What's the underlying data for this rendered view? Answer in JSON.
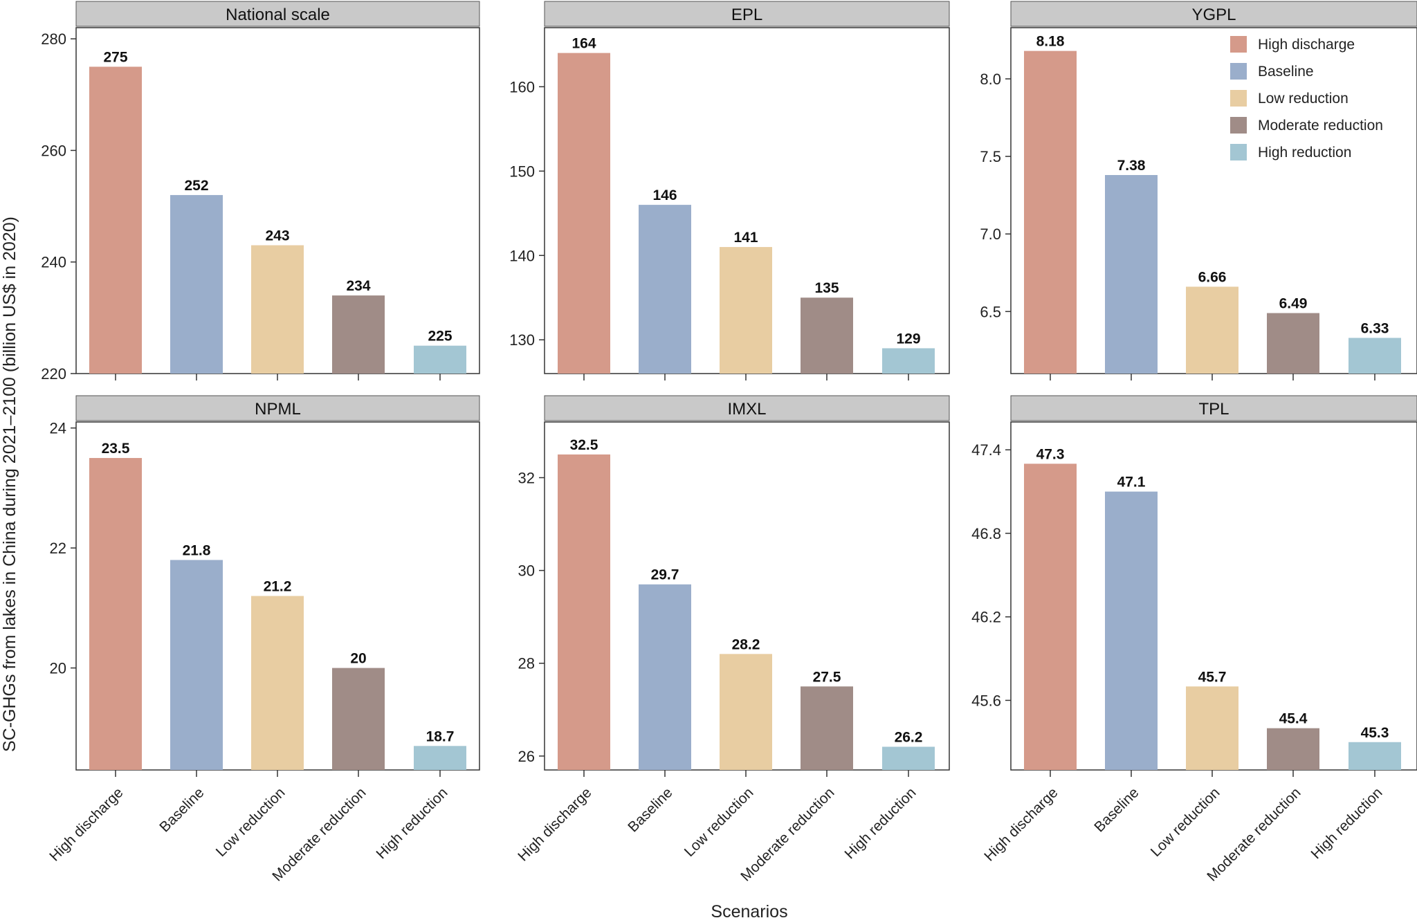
{
  "figure": {
    "ylabel": "SC-GHGs from lakes in China during 2021–2100 (billion US$ in 2020)",
    "xlabel": "Scenarios"
  },
  "legend": {
    "items": [
      {
        "label": "High discharge",
        "color": "#d59a8a"
      },
      {
        "label": "Baseline",
        "color": "#9aaecb"
      },
      {
        "label": "Low reduction",
        "color": "#e8cda2"
      },
      {
        "label": "Moderate reduction",
        "color": "#a08c87"
      },
      {
        "label": "High reduction",
        "color": "#a3c6d3"
      }
    ]
  },
  "chart_data": [
    {
      "type": "bar",
      "title": "National scale",
      "categories": [
        "High discharge",
        "Baseline",
        "Low reduction",
        "Moderate reduction",
        "High reduction"
      ],
      "values": [
        275,
        252,
        243,
        234,
        225
      ],
      "value_labels": [
        "275",
        "252",
        "243",
        "234",
        "225"
      ],
      "ylim": [
        220,
        282
      ],
      "yticks": [
        220,
        240,
        260,
        280
      ],
      "ytick_labels": [
        "220",
        "240",
        "260",
        "280"
      ]
    },
    {
      "type": "bar",
      "title": "EPL",
      "categories": [
        "High discharge",
        "Baseline",
        "Low reduction",
        "Moderate reduction",
        "High reduction"
      ],
      "values": [
        164,
        146,
        141,
        135,
        129
      ],
      "value_labels": [
        "164",
        "146",
        "141",
        "135",
        "129"
      ],
      "ylim": [
        126,
        167
      ],
      "yticks": [
        130,
        140,
        150,
        160
      ],
      "ytick_labels": [
        "130",
        "140",
        "150",
        "160"
      ]
    },
    {
      "type": "bar",
      "title": "YGPL",
      "categories": [
        "High discharge",
        "Baseline",
        "Low reduction",
        "Moderate reduction",
        "High reduction"
      ],
      "values": [
        8.18,
        7.38,
        6.66,
        6.49,
        6.33
      ],
      "value_labels": [
        "8.18",
        "7.38",
        "6.66",
        "6.49",
        "6.33"
      ],
      "ylim": [
        6.1,
        8.33
      ],
      "yticks": [
        6.5,
        7.0,
        7.5,
        8.0
      ],
      "ytick_labels": [
        "6.5",
        "7.0",
        "7.5",
        "8.0"
      ]
    },
    {
      "type": "bar",
      "title": "NPML",
      "categories": [
        "High discharge",
        "Baseline",
        "Low reduction",
        "Moderate reduction",
        "High reduction"
      ],
      "values": [
        23.5,
        21.8,
        21.2,
        20,
        18.7
      ],
      "value_labels": [
        "23.5",
        "21.8",
        "21.2",
        "20",
        "18.7"
      ],
      "ylim": [
        18.3,
        24.1
      ],
      "yticks": [
        20,
        22,
        24
      ],
      "ytick_labels": [
        "20",
        "22",
        "24"
      ]
    },
    {
      "type": "bar",
      "title": "IMXL",
      "categories": [
        "High discharge",
        "Baseline",
        "Low reduction",
        "Moderate reduction",
        "High reduction"
      ],
      "values": [
        32.5,
        29.7,
        28.2,
        27.5,
        26.2
      ],
      "value_labels": [
        "32.5",
        "29.7",
        "28.2",
        "27.5",
        "26.2"
      ],
      "ylim": [
        25.7,
        33.2
      ],
      "yticks": [
        26,
        28,
        30,
        32
      ],
      "ytick_labels": [
        "26",
        "28",
        "30",
        "32"
      ]
    },
    {
      "type": "bar",
      "title": "TPL",
      "categories": [
        "High discharge",
        "Baseline",
        "Low reduction",
        "Moderate reduction",
        "High reduction"
      ],
      "values": [
        47.3,
        47.1,
        45.7,
        45.4,
        45.3
      ],
      "value_labels": [
        "47.3",
        "47.1",
        "45.7",
        "45.4",
        "45.3"
      ],
      "ylim": [
        45.1,
        47.6
      ],
      "yticks": [
        45.6,
        46.2,
        46.8,
        47.4
      ],
      "ytick_labels": [
        "45.6",
        "46.2",
        "46.8",
        "47.4"
      ]
    }
  ]
}
